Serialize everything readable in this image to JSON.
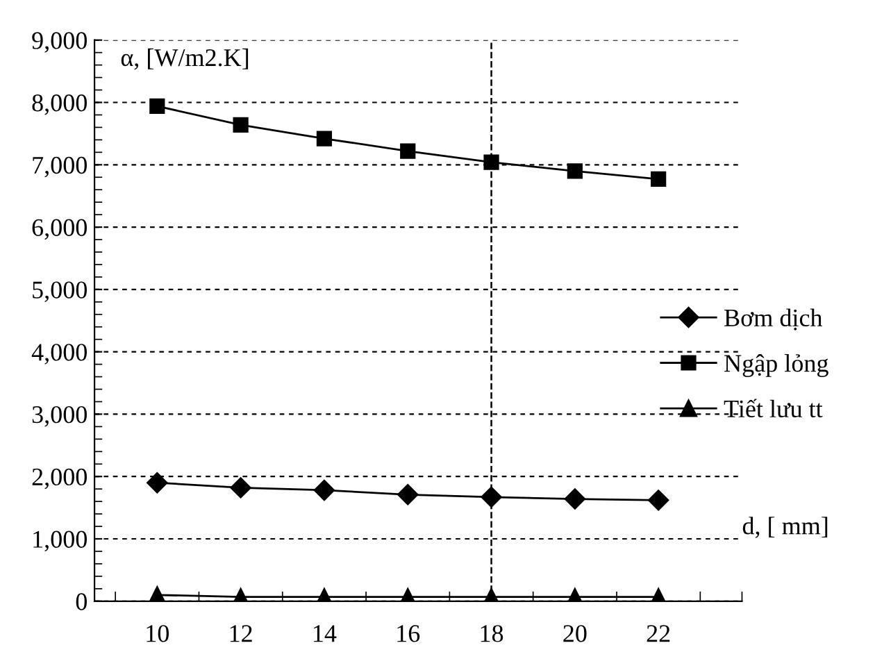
{
  "chart_data": {
    "type": "line",
    "xlabel": "d, [ mm]",
    "ylabel": "α, [W/m2.K]",
    "x": [
      10,
      12,
      14,
      16,
      18,
      20,
      22
    ],
    "series": [
      {
        "name": "Bơm dịch",
        "color": "#000000",
        "marker": "diamond",
        "values": [
          1900,
          1820,
          1780,
          1710,
          1670,
          1640,
          1620
        ]
      },
      {
        "name": "Ngập lỏng",
        "color": "#000000",
        "marker": "square",
        "values": [
          7940,
          7640,
          7420,
          7220,
          7040,
          6900,
          6770
        ]
      },
      {
        "name": "Tiết lưu tt",
        "color": "#000000",
        "marker": "triangle",
        "values": [
          100,
          70,
          70,
          70,
          70,
          70,
          70
        ]
      }
    ],
    "xlim": [
      8.5,
      24
    ],
    "xticks": [
      10,
      12,
      14,
      16,
      18,
      20,
      22
    ],
    "ylim": [
      0,
      9000
    ],
    "yticks": [
      {
        "value": 0,
        "label": "0"
      },
      {
        "value": 1000,
        "label": "1,000"
      },
      {
        "value": 2000,
        "label": "2,000"
      },
      {
        "value": 3000,
        "label": "3,000"
      },
      {
        "value": 4000,
        "label": "4,000"
      },
      {
        "value": 5000,
        "label": "5,000"
      },
      {
        "value": 6000,
        "label": "6,000"
      },
      {
        "value": 7000,
        "label": "7,000"
      },
      {
        "value": 8000,
        "label": "8,000"
      },
      {
        "value": 9000,
        "label": "9,000"
      }
    ],
    "grid": "y",
    "legend": "right",
    "line_style": "solid",
    "ref_lines": [
      {
        "axis": "x",
        "value": 18,
        "line_style": "dashed"
      }
    ]
  }
}
